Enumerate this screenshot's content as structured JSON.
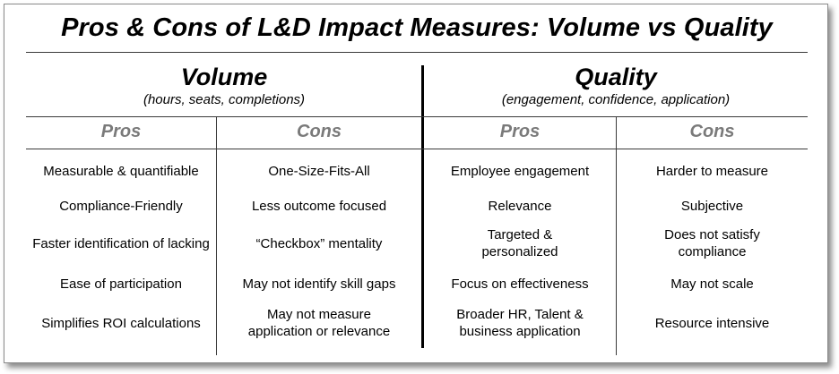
{
  "title": "Pros & Cons of L&D Impact Measures: Volume vs Quality",
  "volume": {
    "heading": "Volume",
    "subheading": "(hours, seats, completions)",
    "pros_label": "Pros",
    "cons_label": "Cons",
    "pros": [
      "Measurable & quantifiable",
      "Compliance-Friendly",
      "Faster identification of lacking",
      "Ease of participation",
      "Simplifies ROI calculations"
    ],
    "cons": [
      "One-Size-Fits-All",
      "Less outcome focused",
      "“Checkbox” mentality",
      "May not identify skill gaps",
      "May not measure application or relevance"
    ]
  },
  "quality": {
    "heading": "Quality",
    "subheading": "(engagement, confidence, application)",
    "pros_label": "Pros",
    "cons_label": "Cons",
    "pros": [
      "Employee engagement",
      "Relevance",
      "Targeted & personalized",
      "Focus on effectiveness",
      "Broader HR, Talent & business application"
    ],
    "cons": [
      "Harder to measure",
      "Subjective",
      "Does not satisfy compliance",
      "May not scale",
      "Resource intensive"
    ]
  }
}
